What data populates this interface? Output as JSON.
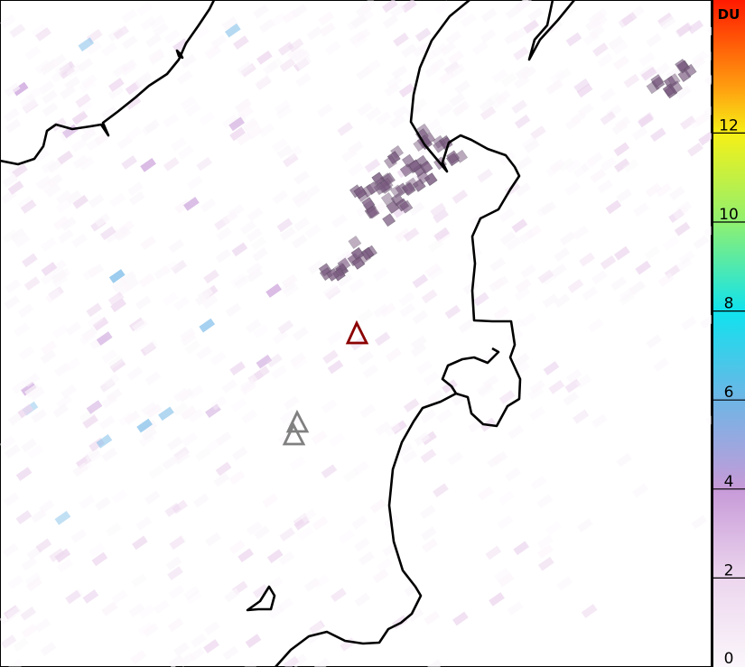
{
  "map": {
    "markers": [
      {
        "kind": "triangle",
        "color": "#8b0000"
      },
      {
        "kind": "triangle",
        "color": "#808080"
      },
      {
        "kind": "triangle",
        "color": "#808080"
      }
    ],
    "coastline_color": "#000000",
    "plume_color": "#7a5a80"
  },
  "colorbar": {
    "unit": "DU",
    "range": [
      0,
      15
    ],
    "ticks": [
      "0",
      "2",
      "4",
      "6",
      "8",
      "10",
      "12"
    ],
    "tick_values": [
      0,
      2,
      4,
      6,
      8,
      10,
      12
    ],
    "stops": [
      {
        "v": 0,
        "c": "#fbf6fb"
      },
      {
        "v": 2,
        "c": "#ecd6ee"
      },
      {
        "v": 4,
        "c": "#c79ad8"
      },
      {
        "v": 6,
        "c": "#6fb5e6"
      },
      {
        "v": 8,
        "c": "#10e2ee"
      },
      {
        "v": 10,
        "c": "#8ff070"
      },
      {
        "v": 12,
        "c": "#f6f016"
      },
      {
        "v": 13,
        "c": "#ffa010"
      },
      {
        "v": 15,
        "c": "#ff1a00"
      }
    ]
  }
}
